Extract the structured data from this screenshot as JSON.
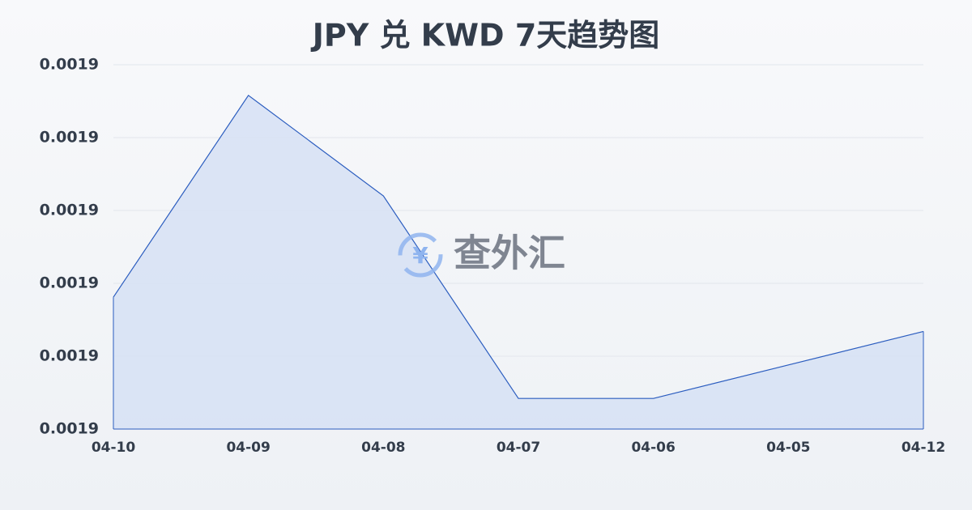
{
  "chart_data": {
    "type": "area",
    "title": "JPY 兑 KWD 7天趋势图",
    "categories": [
      "04-10",
      "04-09",
      "04-08",
      "04-07",
      "04-06",
      "04-05",
      "04-12"
    ],
    "values": [
      0.0018981,
      0.0019258,
      0.001912,
      0.0018842,
      0.0018842,
      0.0018888,
      0.0018934
    ],
    "color": "#2a5cbf",
    "fill": "#d6e0f5",
    "ylim": [
      0.00188,
      0.00193
    ],
    "yticks": [
      {
        "value": 0.00188,
        "label": "0.0019"
      },
      {
        "value": 0.00189,
        "label": "0.0019"
      },
      {
        "value": 0.0019,
        "label": "0.0019"
      },
      {
        "value": 0.00191,
        "label": "0.0019"
      },
      {
        "value": 0.00192,
        "label": "0.0019"
      },
      {
        "value": 0.00193,
        "label": "0.0019"
      }
    ],
    "grid": true,
    "watermark": "查外汇",
    "watermark_icon": "¥"
  }
}
